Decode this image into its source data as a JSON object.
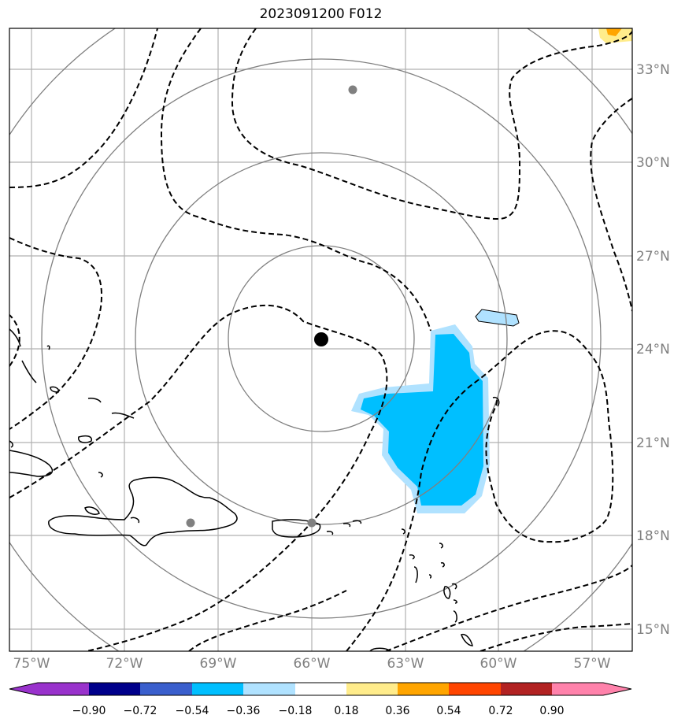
{
  "title": "2023091200 F012",
  "x_ticks": [
    "75°W",
    "72°W",
    "69°W",
    "66°W",
    "63°W",
    "60°W",
    "57°W"
  ],
  "y_ticks": [
    "33°N",
    "30°N",
    "27°N",
    "24°N",
    "21°N",
    "18°N",
    "15°N"
  ],
  "colorbar": {
    "labels": [
      "−0.90",
      "−0.72",
      "−0.54",
      "−0.36",
      "−0.18",
      "0.18",
      "0.36",
      "0.54",
      "0.72",
      "0.90"
    ],
    "colors": [
      "#9932cc",
      "#00008b",
      "#3a5fcd",
      "#00bfff",
      "#b0e2ff",
      "#ffffff",
      "#ffec8b",
      "#ffa500",
      "#ff4500",
      "#b22222",
      "#ff82ab"
    ]
  },
  "map": {
    "lon_range": [
      -75.7,
      -55.7
    ],
    "lat_range": [
      14.3,
      34.3
    ],
    "storm_center": {
      "lon": -65.75,
      "lat": 24.3
    },
    "range_ring_color": "#808080",
    "contour_style": "dashed-black"
  }
}
